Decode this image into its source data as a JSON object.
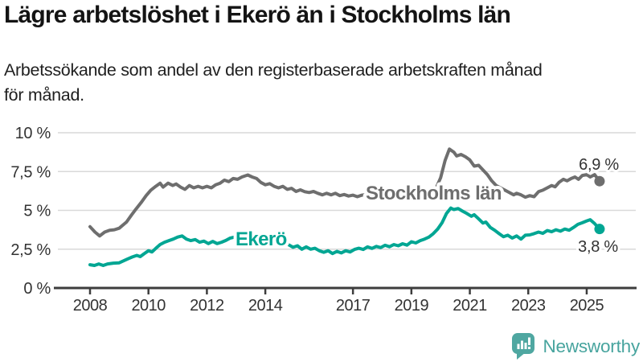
{
  "header": {
    "title": "Lägre arbetslöshet i Ekerö än i Stockholms län",
    "subtitle_lines": [
      "Arbetssökande som andel av den registerbaserade arbetskraften månad",
      "för månad."
    ]
  },
  "chart_data": {
    "type": "line",
    "title": "Lägre arbetslöshet i Ekerö än i Stockholms län",
    "subtitle": "Arbetssökande som andel av den registerbaserade arbetskraften månad för månad.",
    "grid": "horizontal",
    "legend_position": "inline-labels-on-lines",
    "xlim": [
      2008,
      2025.44
    ],
    "ylim": [
      0,
      10
    ],
    "x_axis": {
      "ticks": [
        {
          "value": 2008,
          "label": "2008"
        },
        {
          "value": 2010,
          "label": "2010"
        },
        {
          "value": 2012,
          "label": "2012"
        },
        {
          "value": 2014,
          "label": "2014"
        },
        {
          "value": 2017,
          "label": "2017"
        },
        {
          "value": 2019,
          "label": "2019"
        },
        {
          "value": 2021,
          "label": "2021"
        },
        {
          "value": 2023,
          "label": "2023"
        },
        {
          "value": 2025,
          "label": "2025"
        }
      ]
    },
    "y_axis": {
      "ticks": [
        {
          "value": 0,
          "label": "0 %"
        },
        {
          "value": 2.5,
          "label": "2,5 %"
        },
        {
          "value": 5,
          "label": "5 %"
        },
        {
          "value": 7.5,
          "label": "7,5 %"
        },
        {
          "value": 10,
          "label": "10 %"
        }
      ]
    },
    "series": [
      {
        "name": "Stockholms län",
        "color": "#6e6e6e",
        "end_value_label": "6,9 %",
        "points": [
          [
            2008.0,
            3.95
          ],
          [
            2008.17,
            3.6
          ],
          [
            2008.33,
            3.35
          ],
          [
            2008.5,
            3.6
          ],
          [
            2008.67,
            3.72
          ],
          [
            2008.83,
            3.75
          ],
          [
            2009.0,
            3.85
          ],
          [
            2009.25,
            4.25
          ],
          [
            2009.42,
            4.7
          ],
          [
            2009.58,
            5.1
          ],
          [
            2009.75,
            5.5
          ],
          [
            2009.92,
            5.95
          ],
          [
            2010.08,
            6.3
          ],
          [
            2010.25,
            6.55
          ],
          [
            2010.4,
            6.75
          ],
          [
            2010.5,
            6.5
          ],
          [
            2010.67,
            6.75
          ],
          [
            2010.83,
            6.6
          ],
          [
            2010.95,
            6.7
          ],
          [
            2011.1,
            6.5
          ],
          [
            2011.25,
            6.35
          ],
          [
            2011.4,
            6.6
          ],
          [
            2011.55,
            6.45
          ],
          [
            2011.7,
            6.55
          ],
          [
            2011.85,
            6.45
          ],
          [
            2012.0,
            6.55
          ],
          [
            2012.15,
            6.45
          ],
          [
            2012.3,
            6.65
          ],
          [
            2012.45,
            6.75
          ],
          [
            2012.6,
            6.95
          ],
          [
            2012.75,
            6.85
          ],
          [
            2012.9,
            7.05
          ],
          [
            2013.05,
            7.0
          ],
          [
            2013.2,
            7.15
          ],
          [
            2013.4,
            7.28
          ],
          [
            2013.55,
            7.15
          ],
          [
            2013.7,
            7.05
          ],
          [
            2013.85,
            6.8
          ],
          [
            2014.0,
            6.65
          ],
          [
            2014.15,
            6.72
          ],
          [
            2014.3,
            6.55
          ],
          [
            2014.45,
            6.45
          ],
          [
            2014.6,
            6.55
          ],
          [
            2014.75,
            6.35
          ],
          [
            2014.9,
            6.42
          ],
          [
            2015.05,
            6.22
          ],
          [
            2015.2,
            6.32
          ],
          [
            2015.35,
            6.2
          ],
          [
            2015.5,
            6.15
          ],
          [
            2015.65,
            6.22
          ],
          [
            2015.8,
            6.1
          ],
          [
            2015.95,
            6.0
          ],
          [
            2016.1,
            6.1
          ],
          [
            2016.25,
            6.0
          ],
          [
            2016.4,
            6.1
          ],
          [
            2016.55,
            5.95
          ],
          [
            2016.7,
            6.02
          ],
          [
            2016.85,
            5.92
          ],
          [
            2017.0,
            5.98
          ],
          [
            2017.15,
            5.88
          ],
          [
            2017.3,
            5.98
          ],
          [
            2017.5,
            6.02
          ],
          [
            2017.7,
            5.95
          ],
          [
            2017.9,
            6.05
          ],
          [
            2018.1,
            6.0
          ],
          [
            2018.3,
            6.08
          ],
          [
            2018.5,
            6.02
          ],
          [
            2018.7,
            6.1
          ],
          [
            2018.9,
            6.05
          ],
          [
            2019.1,
            6.1
          ],
          [
            2019.3,
            6.08
          ],
          [
            2019.5,
            6.18
          ],
          [
            2019.7,
            6.28
          ],
          [
            2019.85,
            6.45
          ],
          [
            2020.0,
            7.1
          ],
          [
            2020.15,
            8.2
          ],
          [
            2020.3,
            8.95
          ],
          [
            2020.45,
            8.75
          ],
          [
            2020.55,
            8.5
          ],
          [
            2020.7,
            8.6
          ],
          [
            2020.85,
            8.45
          ],
          [
            2021.0,
            8.25
          ],
          [
            2021.15,
            7.85
          ],
          [
            2021.3,
            7.9
          ],
          [
            2021.45,
            7.6
          ],
          [
            2021.6,
            7.3
          ],
          [
            2021.75,
            6.9
          ],
          [
            2021.9,
            6.6
          ],
          [
            2022.05,
            6.45
          ],
          [
            2022.2,
            6.3
          ],
          [
            2022.35,
            6.15
          ],
          [
            2022.5,
            6.0
          ],
          [
            2022.6,
            6.1
          ],
          [
            2022.75,
            6.0
          ],
          [
            2022.9,
            5.85
          ],
          [
            2023.05,
            5.95
          ],
          [
            2023.2,
            5.88
          ],
          [
            2023.35,
            6.2
          ],
          [
            2023.5,
            6.3
          ],
          [
            2023.65,
            6.45
          ],
          [
            2023.8,
            6.6
          ],
          [
            2023.92,
            6.52
          ],
          [
            2024.05,
            6.8
          ],
          [
            2024.2,
            7.0
          ],
          [
            2024.33,
            6.9
          ],
          [
            2024.47,
            7.05
          ],
          [
            2024.6,
            7.15
          ],
          [
            2024.72,
            7.0
          ],
          [
            2024.85,
            7.25
          ],
          [
            2025.0,
            7.3
          ],
          [
            2025.12,
            7.15
          ],
          [
            2025.27,
            7.3
          ],
          [
            2025.44,
            6.88
          ]
        ]
      },
      {
        "name": "Ekerö",
        "color": "#00a693",
        "end_value_label": "3,8 %",
        "points": [
          [
            2008.0,
            1.5
          ],
          [
            2008.15,
            1.45
          ],
          [
            2008.3,
            1.55
          ],
          [
            2008.45,
            1.45
          ],
          [
            2008.6,
            1.55
          ],
          [
            2008.8,
            1.6
          ],
          [
            2009.0,
            1.62
          ],
          [
            2009.15,
            1.75
          ],
          [
            2009.3,
            1.88
          ],
          [
            2009.45,
            2.0
          ],
          [
            2009.6,
            2.1
          ],
          [
            2009.72,
            2.02
          ],
          [
            2009.85,
            2.2
          ],
          [
            2010.0,
            2.4
          ],
          [
            2010.12,
            2.32
          ],
          [
            2010.25,
            2.55
          ],
          [
            2010.4,
            2.8
          ],
          [
            2010.55,
            2.95
          ],
          [
            2010.7,
            3.05
          ],
          [
            2010.85,
            3.15
          ],
          [
            2011.0,
            3.28
          ],
          [
            2011.15,
            3.35
          ],
          [
            2011.3,
            3.15
          ],
          [
            2011.45,
            3.05
          ],
          [
            2011.6,
            3.12
          ],
          [
            2011.75,
            2.95
          ],
          [
            2011.9,
            3.02
          ],
          [
            2012.05,
            2.86
          ],
          [
            2012.2,
            3.0
          ],
          [
            2012.35,
            2.86
          ],
          [
            2012.5,
            2.95
          ],
          [
            2012.65,
            3.06
          ],
          [
            2012.8,
            3.22
          ],
          [
            2012.95,
            3.28
          ],
          [
            2013.1,
            3.12
          ],
          [
            2013.3,
            3.22
          ],
          [
            2013.5,
            3.1
          ],
          [
            2013.7,
            3.2
          ],
          [
            2013.9,
            3.08
          ],
          [
            2014.1,
            3.18
          ],
          [
            2014.3,
            3.1
          ],
          [
            2014.5,
            3.0
          ],
          [
            2014.65,
            2.9
          ],
          [
            2014.8,
            2.78
          ],
          [
            2014.95,
            2.62
          ],
          [
            2015.1,
            2.72
          ],
          [
            2015.25,
            2.5
          ],
          [
            2015.4,
            2.65
          ],
          [
            2015.55,
            2.5
          ],
          [
            2015.7,
            2.56
          ],
          [
            2015.85,
            2.4
          ],
          [
            2016.0,
            2.3
          ],
          [
            2016.15,
            2.4
          ],
          [
            2016.3,
            2.22
          ],
          [
            2016.45,
            2.36
          ],
          [
            2016.6,
            2.26
          ],
          [
            2016.75,
            2.4
          ],
          [
            2016.9,
            2.32
          ],
          [
            2017.05,
            2.48
          ],
          [
            2017.2,
            2.56
          ],
          [
            2017.35,
            2.48
          ],
          [
            2017.5,
            2.65
          ],
          [
            2017.65,
            2.55
          ],
          [
            2017.8,
            2.68
          ],
          [
            2017.95,
            2.6
          ],
          [
            2018.1,
            2.75
          ],
          [
            2018.25,
            2.66
          ],
          [
            2018.4,
            2.8
          ],
          [
            2018.55,
            2.72
          ],
          [
            2018.7,
            2.85
          ],
          [
            2018.85,
            2.76
          ],
          [
            2019.0,
            2.98
          ],
          [
            2019.15,
            2.9
          ],
          [
            2019.3,
            3.05
          ],
          [
            2019.45,
            3.15
          ],
          [
            2019.6,
            3.28
          ],
          [
            2019.75,
            3.5
          ],
          [
            2019.9,
            3.8
          ],
          [
            2020.05,
            4.2
          ],
          [
            2020.2,
            4.8
          ],
          [
            2020.35,
            5.15
          ],
          [
            2020.45,
            5.05
          ],
          [
            2020.6,
            5.12
          ],
          [
            2020.75,
            4.95
          ],
          [
            2020.9,
            4.8
          ],
          [
            2021.05,
            4.62
          ],
          [
            2021.15,
            4.72
          ],
          [
            2021.3,
            4.45
          ],
          [
            2021.45,
            4.18
          ],
          [
            2021.55,
            4.25
          ],
          [
            2021.7,
            3.9
          ],
          [
            2021.85,
            3.72
          ],
          [
            2022.0,
            3.5
          ],
          [
            2022.15,
            3.3
          ],
          [
            2022.3,
            3.4
          ],
          [
            2022.45,
            3.22
          ],
          [
            2022.6,
            3.35
          ],
          [
            2022.75,
            3.15
          ],
          [
            2022.9,
            3.4
          ],
          [
            2023.05,
            3.42
          ],
          [
            2023.2,
            3.5
          ],
          [
            2023.35,
            3.6
          ],
          [
            2023.5,
            3.52
          ],
          [
            2023.65,
            3.7
          ],
          [
            2023.8,
            3.62
          ],
          [
            2023.95,
            3.75
          ],
          [
            2024.1,
            3.66
          ],
          [
            2024.25,
            3.8
          ],
          [
            2024.4,
            3.72
          ],
          [
            2024.55,
            3.9
          ],
          [
            2024.7,
            4.1
          ],
          [
            2024.85,
            4.2
          ],
          [
            2025.0,
            4.32
          ],
          [
            2025.12,
            4.4
          ],
          [
            2025.27,
            4.15
          ],
          [
            2025.44,
            3.8
          ]
        ]
      }
    ],
    "colors": {
      "stockholms_lan": "#6e6e6e",
      "ekero": "#00a693",
      "grid": "#d9d9d9",
      "axis": "#3d3d3d",
      "tick_text": "#333333"
    }
  },
  "branding": {
    "logo_text": "Newsworthy",
    "logo_color": "#47a49e",
    "logo_icon": "bar-chart-speech-bubble-icon"
  }
}
